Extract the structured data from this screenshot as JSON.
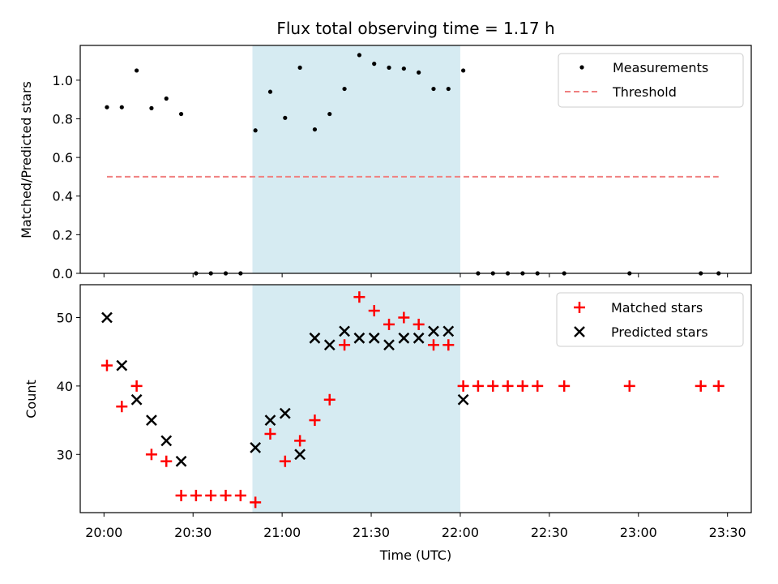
{
  "chart_data": [
    {
      "type": "scatter",
      "title": "Flux total observing time = 1.17 h",
      "xlabel": "",
      "ylabel": "Matched/Predicted stars",
      "xlim_minutes_since_20_00": [
        -8,
        218
      ],
      "ylim": [
        0,
        1.18
      ],
      "yticks": [
        "0.0",
        "0.2",
        "0.4",
        "0.6",
        "0.8",
        "1.0"
      ],
      "grid": false,
      "legend": "top-right",
      "shaded_interval": [
        "20:50",
        "22:00"
      ],
      "series": [
        {
          "name": "Measurements",
          "marker": "dot",
          "color": "#000000",
          "points": [
            {
              "x": "20:01",
              "y": 0.86
            },
            {
              "x": "20:06",
              "y": 0.86
            },
            {
              "x": "20:11",
              "y": 1.05
            },
            {
              "x": "20:16",
              "y": 0.855
            },
            {
              "x": "20:21",
              "y": 0.905
            },
            {
              "x": "20:26",
              "y": 0.825
            },
            {
              "x": "20:31",
              "y": 0.0
            },
            {
              "x": "20:36",
              "y": 0.0
            },
            {
              "x": "20:41",
              "y": 0.0
            },
            {
              "x": "20:46",
              "y": 0.0
            },
            {
              "x": "20:51",
              "y": 0.74
            },
            {
              "x": "20:56",
              "y": 0.94
            },
            {
              "x": "21:01",
              "y": 0.805
            },
            {
              "x": "21:06",
              "y": 1.065
            },
            {
              "x": "21:11",
              "y": 0.745
            },
            {
              "x": "21:16",
              "y": 0.825
            },
            {
              "x": "21:21",
              "y": 0.955
            },
            {
              "x": "21:26",
              "y": 1.13
            },
            {
              "x": "21:31",
              "y": 1.085
            },
            {
              "x": "21:36",
              "y": 1.065
            },
            {
              "x": "21:41",
              "y": 1.06
            },
            {
              "x": "21:46",
              "y": 1.04
            },
            {
              "x": "21:51",
              "y": 0.955
            },
            {
              "x": "21:56",
              "y": 0.955
            },
            {
              "x": "22:01",
              "y": 1.05
            },
            {
              "x": "22:06",
              "y": 0.0
            },
            {
              "x": "22:11",
              "y": 0.0
            },
            {
              "x": "22:16",
              "y": 0.0
            },
            {
              "x": "22:21",
              "y": 0.0
            },
            {
              "x": "22:26",
              "y": 0.0
            },
            {
              "x": "22:35",
              "y": 0.0
            },
            {
              "x": "22:57",
              "y": 0.0
            },
            {
              "x": "23:21",
              "y": 0.0
            },
            {
              "x": "23:27",
              "y": 0.0
            }
          ]
        },
        {
          "name": "Threshold",
          "marker": "dashed-line",
          "color": "#f08080",
          "points": [
            {
              "x": "20:01",
              "y": 0.5
            },
            {
              "x": "23:27",
              "y": 0.5
            }
          ]
        }
      ]
    },
    {
      "type": "scatter",
      "title": "",
      "xlabel": "Time (UTC)",
      "ylabel": "Count",
      "xlim_minutes_since_20_00": [
        -8,
        218
      ],
      "ylim": [
        21.5,
        54.8
      ],
      "yticks": [
        "30",
        "40",
        "50"
      ],
      "xticks": [
        "20:00",
        "20:30",
        "21:00",
        "21:30",
        "22:00",
        "22:30",
        "23:00",
        "23:30"
      ],
      "grid": false,
      "legend": "top-right",
      "shaded_interval": [
        "20:50",
        "22:00"
      ],
      "series": [
        {
          "name": "Matched stars",
          "marker": "plus",
          "color": "#ff0000",
          "points": [
            {
              "x": "20:01",
              "y": 43
            },
            {
              "x": "20:06",
              "y": 37
            },
            {
              "x": "20:11",
              "y": 40
            },
            {
              "x": "20:16",
              "y": 30
            },
            {
              "x": "20:21",
              "y": 29
            },
            {
              "x": "20:26",
              "y": 24
            },
            {
              "x": "20:31",
              "y": 24
            },
            {
              "x": "20:36",
              "y": 24
            },
            {
              "x": "20:41",
              "y": 24
            },
            {
              "x": "20:46",
              "y": 24
            },
            {
              "x": "20:51",
              "y": 23
            },
            {
              "x": "20:56",
              "y": 33
            },
            {
              "x": "21:01",
              "y": 29
            },
            {
              "x": "21:06",
              "y": 32
            },
            {
              "x": "21:11",
              "y": 35
            },
            {
              "x": "21:16",
              "y": 38
            },
            {
              "x": "21:21",
              "y": 46
            },
            {
              "x": "21:26",
              "y": 53
            },
            {
              "x": "21:31",
              "y": 51
            },
            {
              "x": "21:36",
              "y": 49
            },
            {
              "x": "21:41",
              "y": 50
            },
            {
              "x": "21:46",
              "y": 49
            },
            {
              "x": "21:51",
              "y": 46
            },
            {
              "x": "21:56",
              "y": 46
            },
            {
              "x": "22:01",
              "y": 40
            },
            {
              "x": "22:06",
              "y": 40
            },
            {
              "x": "22:11",
              "y": 40
            },
            {
              "x": "22:16",
              "y": 40
            },
            {
              "x": "22:21",
              "y": 40
            },
            {
              "x": "22:26",
              "y": 40
            },
            {
              "x": "22:35",
              "y": 40
            },
            {
              "x": "22:57",
              "y": 40
            },
            {
              "x": "23:21",
              "y": 40
            },
            {
              "x": "23:27",
              "y": 40
            }
          ]
        },
        {
          "name": "Predicted stars",
          "marker": "x",
          "color": "#000000",
          "points": [
            {
              "x": "20:01",
              "y": 50
            },
            {
              "x": "20:06",
              "y": 43
            },
            {
              "x": "20:11",
              "y": 38
            },
            {
              "x": "20:16",
              "y": 35
            },
            {
              "x": "20:21",
              "y": 32
            },
            {
              "x": "20:26",
              "y": 29
            },
            {
              "x": "20:51",
              "y": 31
            },
            {
              "x": "20:56",
              "y": 35
            },
            {
              "x": "21:01",
              "y": 36
            },
            {
              "x": "21:06",
              "y": 30
            },
            {
              "x": "21:11",
              "y": 47
            },
            {
              "x": "21:16",
              "y": 46
            },
            {
              "x": "21:21",
              "y": 48
            },
            {
              "x": "21:26",
              "y": 47
            },
            {
              "x": "21:31",
              "y": 47
            },
            {
              "x": "21:36",
              "y": 46
            },
            {
              "x": "21:41",
              "y": 47
            },
            {
              "x": "21:46",
              "y": 47
            },
            {
              "x": "21:51",
              "y": 48
            },
            {
              "x": "21:56",
              "y": 48
            },
            {
              "x": "22:01",
              "y": 38
            }
          ]
        }
      ]
    }
  ]
}
